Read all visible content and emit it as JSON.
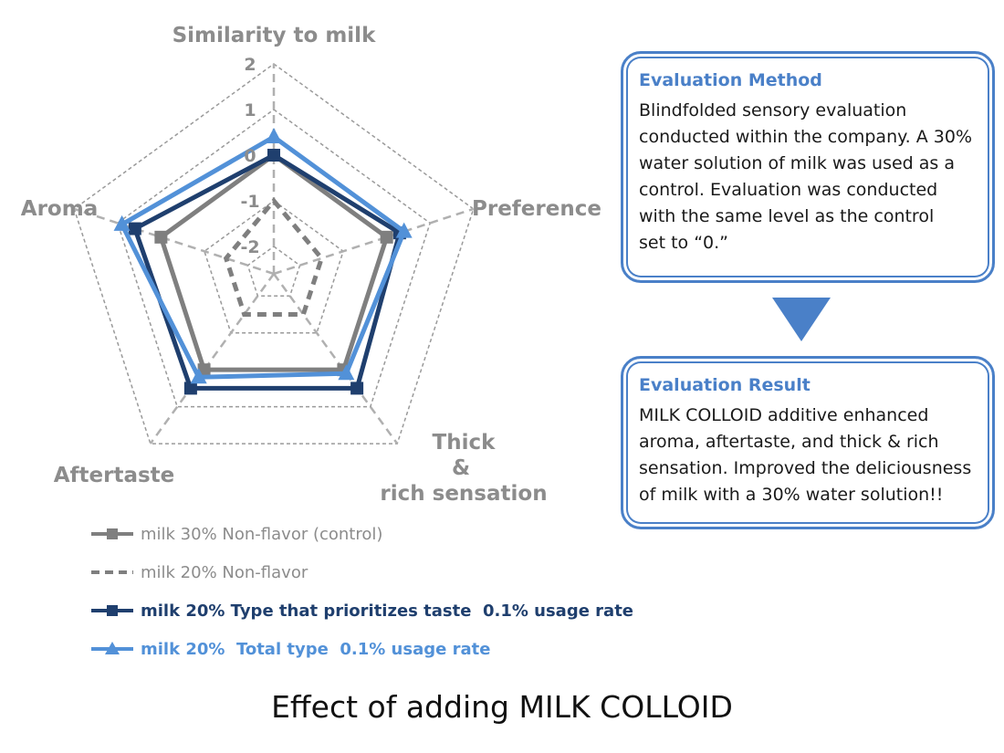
{
  "chart_data": {
    "type": "radar",
    "axes": [
      "Similarity to milk",
      "Preference",
      "Thick & rich sensation",
      "Aftertaste",
      "Aroma"
    ],
    "axis_labels_display": {
      "similarity": "Similarity to milk",
      "preference": "Preference",
      "thick_1": "Thick",
      "thick_2": "&",
      "thick_3": "rich sensation",
      "aftertaste": "Aftertaste",
      "aroma": "Aroma"
    },
    "ticks": [
      "2",
      "1",
      "0",
      "-1",
      "-2"
    ],
    "range": [
      -2.6,
      2
    ],
    "grid": "dashed",
    "series": [
      {
        "name": "milk 30% Non-flavor (control)",
        "values": [
          0,
          0,
          0,
          0,
          0
        ],
        "color": "#7f7f7f",
        "dash": false,
        "marker": "square"
      },
      {
        "name": "milk 20% Non-flavor",
        "values": [
          -1,
          -1.5,
          -1.5,
          -1.5,
          -1.5
        ],
        "color": "#7f7f7f",
        "dash": true,
        "marker": "none"
      },
      {
        "name": "milk 20% Type that prioritizes taste  0.1% usage rate",
        "values": [
          0,
          0.3,
          0.5,
          0.5,
          0.6
        ],
        "color": "#1f3f6e",
        "dash": false,
        "marker": "square"
      },
      {
        "name": "milk 20%  Total type  0.1% usage rate",
        "values": [
          0.4,
          0.4,
          0.1,
          0.2,
          0.9
        ],
        "color": "#5291d8",
        "dash": false,
        "marker": "triangle"
      }
    ]
  },
  "evaluation_method": {
    "title": "Evaluation Method",
    "body": "Blindfolded sensory evaluation\nconducted within the company. A 30%\nwater solution of milk was used as a\ncontrol. Evaluation was conducted\nwith   the same level as the control\nset to “0.”"
  },
  "evaluation_result": {
    "title": "Evaluation Result",
    "body": "MILK COLLOID additive enhanced\naroma, aftertaste, and thick & rich\nsensation. Improved the deliciousness\nof milk with a 30% water solution!!"
  },
  "arrow_color": "#4a80c8",
  "main_title": "Effect of adding MILK COLLOID"
}
